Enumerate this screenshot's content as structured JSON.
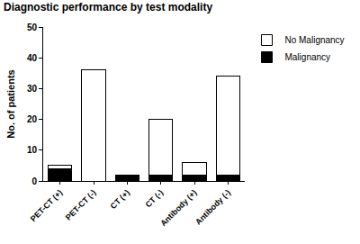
{
  "chart_data": {
    "type": "bar",
    "title": "Diagnostic performance by test modality",
    "y_label": "No. of patients",
    "categories": [
      "PET-CT (+)",
      "PET-CT (-)",
      "CT (+)",
      "CT (-)",
      "Antibody (+)",
      "Antibody (-)"
    ],
    "series": [
      {
        "name": "Malignancy",
        "color": "#000000",
        "values": [
          4,
          0,
          2,
          2,
          2,
          2
        ]
      },
      {
        "name": "No Malignancy",
        "color": "#ffffff",
        "values": [
          1,
          36,
          0,
          18,
          4,
          32
        ]
      }
    ],
    "stacked": true,
    "ylim": [
      0,
      50
    ],
    "yticks": [
      0,
      10,
      20,
      30,
      40,
      50
    ],
    "grid": false,
    "legend": "top right"
  }
}
